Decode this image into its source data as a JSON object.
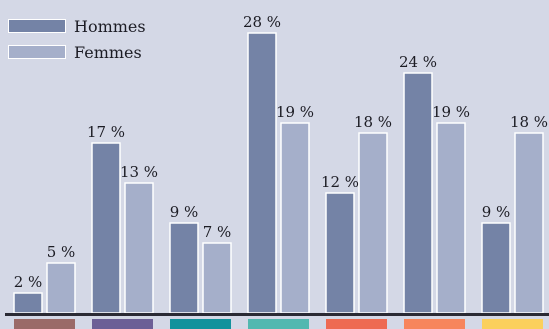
{
  "chart_data": {
    "type": "bar",
    "title": "",
    "xlabel": "",
    "ylabel": "",
    "ylim": [
      0,
      28
    ],
    "grid": false,
    "legend_position": "top-left",
    "categories": [
      "",
      "",
      "",
      "",
      "",
      "",
      ""
    ],
    "category_colors": [
      "#9a6a68",
      "#6c5f96",
      "#12929c",
      "#52b8b0",
      "#ee6a52",
      "#f7855c",
      "#fbd05c"
    ],
    "series": [
      {
        "name": "Hommes",
        "color": "#7483a6",
        "values": [
          2,
          17,
          9,
          28,
          12,
          24,
          9
        ],
        "labels": [
          "2 %",
          "17 %",
          "9 %",
          "28 %",
          "12 %",
          "24 %",
          "9 %"
        ]
      },
      {
        "name": "Femmes",
        "color": "#a5afca",
        "values": [
          5,
          13,
          7,
          19,
          18,
          19,
          18
        ],
        "labels": [
          "5 %",
          "13 %",
          "7 %",
          "19 %",
          "18 %",
          "19 %",
          "18 %"
        ]
      }
    ]
  }
}
